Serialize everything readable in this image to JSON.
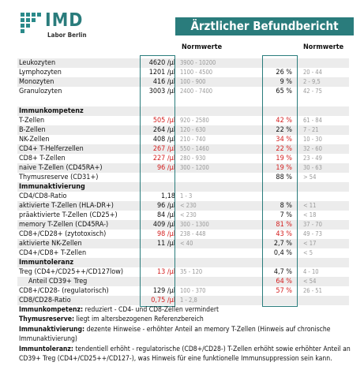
{
  "header": {
    "logo": "IMD",
    "logo_sub": "Labor Berlin",
    "title": "Ärztlicher Befundbericht"
  },
  "columns": {
    "norm_abs": "Normwerte",
    "norm_pct": "Normwerte"
  },
  "rows": [
    {
      "label": "Leukozyten",
      "value": "4620 /µl",
      "norm": "3900 - 10200"
    },
    {
      "label": "Lymphozyten",
      "value": "1201 /µl",
      "norm": "1100 - 4500",
      "pct": "26 %",
      "pct_norm": "20 - 44"
    },
    {
      "label": "Monozyten",
      "value": "416 /µl",
      "norm": "100 - 900",
      "pct": "9 %",
      "pct_norm": "2 - 9,5"
    },
    {
      "label": "Granulozyten",
      "value": "3003 /µl",
      "norm": "2400 - 7400",
      "pct": "65 %",
      "pct_norm": "42 - 75"
    },
    {
      "section": "Immunkompetenz"
    },
    {
      "label": "T-Zellen",
      "value": "505 /µl",
      "value_flag": true,
      "norm": "920 - 2580",
      "pct": "42 %",
      "pct_flag": true,
      "pct_norm": "61 - 84"
    },
    {
      "label": "B-Zellen",
      "value": "264 /µl",
      "norm": "120 - 630",
      "pct": "22 %",
      "pct_norm": "7 - 21"
    },
    {
      "label": "NK-Zellen",
      "value": "408 /µl",
      "norm": "210 - 740",
      "pct": "34 %",
      "pct_flag": true,
      "pct_norm": "10 - 30"
    },
    {
      "label": "CD4+ T-Helferzellen",
      "value": "267 /µl",
      "value_flag": true,
      "norm": "550 - 1460",
      "pct": "22 %",
      "pct_flag": true,
      "pct_norm": "32 - 60"
    },
    {
      "label": "CD8+ T-Zellen",
      "value": "227 /µl",
      "value_flag": true,
      "norm": "280 - 930",
      "pct": "19 %",
      "pct_flag": true,
      "pct_norm": "23 - 49"
    },
    {
      "label": "naive T-Zellen (CD45RA+)",
      "value": "96 /µl",
      "value_flag": true,
      "norm": "300 - 1200",
      "pct": "19 %",
      "pct_flag": true,
      "pct_norm": "30 - 63"
    },
    {
      "label": "Thymusreserve (CD31+)",
      "pct": "88 %",
      "pct_norm": "> 54"
    },
    {
      "section": "Immunaktivierung"
    },
    {
      "label": "CD4/CD8-Ratio",
      "value": "1,18",
      "norm": "1 - 3"
    },
    {
      "label": "aktivierte T-Zellen (HLA-DR+)",
      "value": "96 /µl",
      "norm": "< 230",
      "pct": "8 %",
      "pct_norm": "< 11"
    },
    {
      "label": "präaktivierte T-Zellen (CD25+)",
      "value": "84 /µl",
      "norm": "< 230",
      "pct": "7 %",
      "pct_norm": "< 18"
    },
    {
      "label": "memory T-Zellen (CD45RA-)",
      "value": "409 /µl",
      "norm": "300 - 1300",
      "pct": "81 %",
      "pct_flag": true,
      "pct_norm": "37 - 70"
    },
    {
      "label": "CD8+/CD28+ (zytotoxisch)",
      "value": "98 /µl",
      "value_flag": true,
      "norm": "238 - 448",
      "pct": "43 %",
      "pct_flag": true,
      "pct_norm": "49 - 73"
    },
    {
      "label": "aktivierte NK-Zellen",
      "value": "11 /µl",
      "norm": "< 40",
      "pct": "2,7 %",
      "pct_norm": "< 17"
    },
    {
      "label": "CD4+/CD8+ T-Zellen",
      "pct": "0,4 %",
      "pct_norm": "< 5"
    },
    {
      "section": "Immuntoleranz"
    },
    {
      "label": "Treg (CD4+/CD25++/CD127low)",
      "value": "13 /µl",
      "value_flag": true,
      "norm": "35 - 120",
      "pct": "4,7 %",
      "pct_norm": "4 - 10"
    },
    {
      "label": "Anteil CD39+ Treg",
      "indent": true,
      "pct": "64 %",
      "pct_flag": true,
      "pct_norm": "< 54"
    },
    {
      "label": "CD8+/CD28- (regulatorisch)",
      "value": "129 /µl",
      "norm": "100 - 370",
      "pct": "57 %",
      "pct_flag": true,
      "pct_norm": "26 - 51"
    },
    {
      "label": "CD8/CD28-Ratio",
      "value": "0,75 /µl",
      "value_flag": true,
      "norm": "1 - 2,8"
    }
  ],
  "notes": [
    {
      "term": "Immunkompetenz:",
      "text": "reduziert - CD4- und CD8-Zellen vermindert"
    },
    {
      "term": "Thymusreserve:",
      "text": "liegt im altersbezogenen Referenzbereich"
    },
    {
      "term": "Immunaktivierung:",
      "text": "dezente Hinweise - erhöhter Anteil an memory T-Zellen (Hinweis auf chronische Immunaktivierung)"
    },
    {
      "term": "Immuntoleranz:",
      "text": "tendentiell erhöht - regulatorische (CD8+/CD28-) T-Zellen erhöht sowie erhöhter Anteil an CD39+ Treg (CD4+/CD25++/CD127-), was Hinweis für eine funktionelle Immunsuppression sein kann."
    }
  ]
}
